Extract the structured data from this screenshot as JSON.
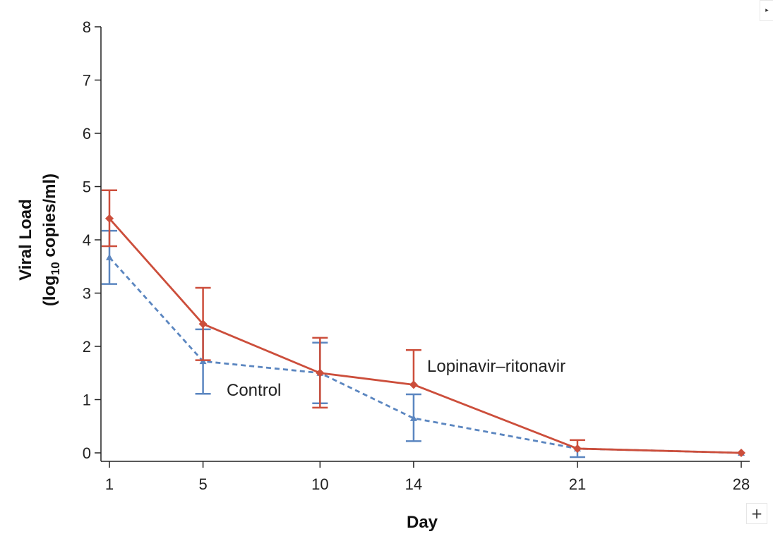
{
  "chart_data": {
    "type": "line",
    "xlabel": "Day",
    "ylabel_line1": "Viral Load",
    "ylabel_line2_pre": "(log",
    "ylabel_line2_sub": "10",
    "ylabel_line2_post": " copies/ml)",
    "x": [
      1,
      5,
      10,
      14,
      21,
      28
    ],
    "xticks": [
      "1",
      "5",
      "10",
      "14",
      "21",
      "28"
    ],
    "xlim": [
      1,
      28
    ],
    "ylim": [
      0,
      8
    ],
    "yticks": [
      "0",
      "1",
      "2",
      "3",
      "4",
      "5",
      "6",
      "7",
      "8"
    ],
    "grid": false,
    "series": [
      {
        "name": "Lopinavir–ritonavir",
        "color": "#cc4e3b",
        "marker": "diamond",
        "dashed": false,
        "values": [
          4.4,
          2.42,
          1.5,
          1.28,
          0.08,
          0.0
        ],
        "lower": [
          3.88,
          1.74,
          0.85,
          null,
          null,
          null
        ],
        "upper": [
          4.93,
          3.1,
          2.16,
          1.93,
          0.24,
          null
        ]
      },
      {
        "name": "Control",
        "color": "#5b86c0",
        "marker": "triangle",
        "dashed": true,
        "values": [
          3.67,
          1.72,
          1.5,
          0.65,
          0.08,
          0.0
        ],
        "lower": [
          3.17,
          1.11,
          0.93,
          0.22,
          -0.08,
          null
        ],
        "upper": [
          4.17,
          2.32,
          2.07,
          1.1,
          null,
          null
        ]
      }
    ],
    "annotations": [
      {
        "text": "Lopinavir–ritonavir",
        "series": 0
      },
      {
        "text": "Control",
        "series": 1
      }
    ]
  },
  "ui": {
    "collapse_icon": "▸",
    "zoom_icon": "+"
  }
}
